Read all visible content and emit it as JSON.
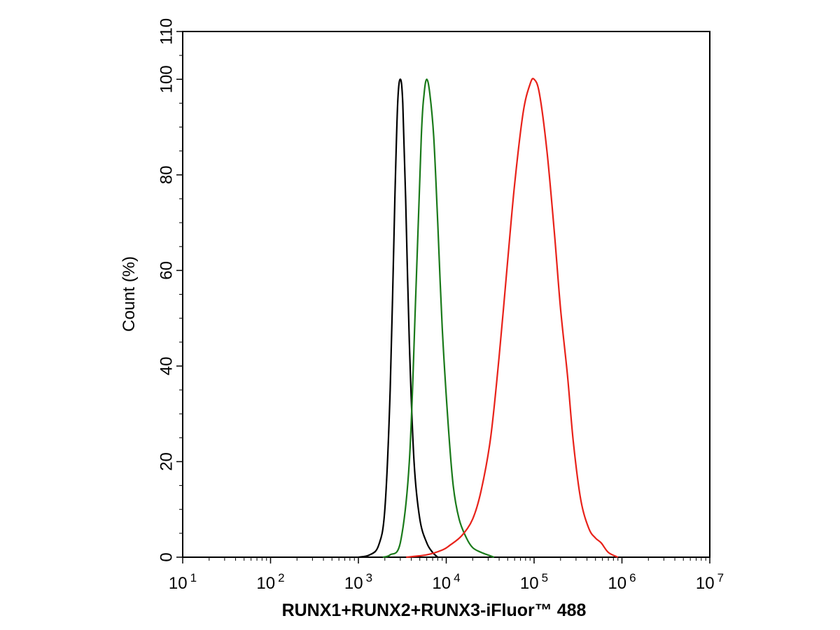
{
  "chart_data": {
    "type": "line",
    "title": "",
    "xlabel": "RUNX1+RUNX2+RUNX3-iFluor™ 488",
    "ylabel": "Count  (%)",
    "xscale": "log",
    "xlim": [
      10,
      10000000
    ],
    "ylim": [
      0,
      110
    ],
    "grid": false,
    "x_ticks": [
      {
        "base": "10",
        "exp": "1",
        "value": 10
      },
      {
        "base": "10",
        "exp": "2",
        "value": 100
      },
      {
        "base": "10",
        "exp": "3",
        "value": 1000
      },
      {
        "base": "10",
        "exp": "4",
        "value": 10000
      },
      {
        "base": "10",
        "exp": "5",
        "value": 100000
      },
      {
        "base": "10",
        "exp": "6",
        "value": 1000000
      },
      {
        "base": "10",
        "exp": "7",
        "value": 10000000
      }
    ],
    "y_ticks": [
      "0",
      "20",
      "40",
      "60",
      "80",
      "100",
      "110"
    ],
    "series": [
      {
        "color": "#000000",
        "x": [
          1000,
          1350,
          1700,
          2000,
          2300,
          2600,
          2800,
          3000,
          3200,
          3450,
          3800,
          4300,
          5000,
          6000,
          7000,
          8000
        ],
        "y": [
          0,
          0.5,
          2.5,
          10,
          35,
          75,
          95,
          100,
          95,
          75,
          45,
          20,
          8,
          3,
          1,
          0
        ]
      },
      {
        "color": "#1a7a1a",
        "x": [
          1900,
          2300,
          3000,
          3800,
          4500,
          5200,
          5600,
          6000,
          6500,
          7200,
          8000,
          9000,
          10500,
          12000,
          14000,
          17000,
          20000,
          25000,
          35000
        ],
        "y": [
          0,
          0.5,
          3,
          20,
          55,
          88,
          97,
          100,
          97,
          88,
          70,
          48,
          28,
          15,
          8,
          4,
          2,
          1,
          0
        ]
      },
      {
        "color": "#e8221a",
        "x": [
          3500,
          6000,
          9000,
          11000,
          15000,
          20000,
          25000,
          32000,
          40000,
          50000,
          60000,
          75000,
          90000,
          100000,
          115000,
          140000,
          170000,
          200000,
          240000,
          280000,
          340000,
          420000,
          500000,
          580000,
          700000,
          900000
        ],
        "y": [
          0,
          0.5,
          1.5,
          2.5,
          4.5,
          8,
          14,
          25,
          42,
          62,
          78,
          93,
          99,
          100,
          97,
          85,
          68,
          52,
          38,
          24,
          12,
          6,
          4,
          3,
          1,
          0
        ]
      }
    ]
  }
}
